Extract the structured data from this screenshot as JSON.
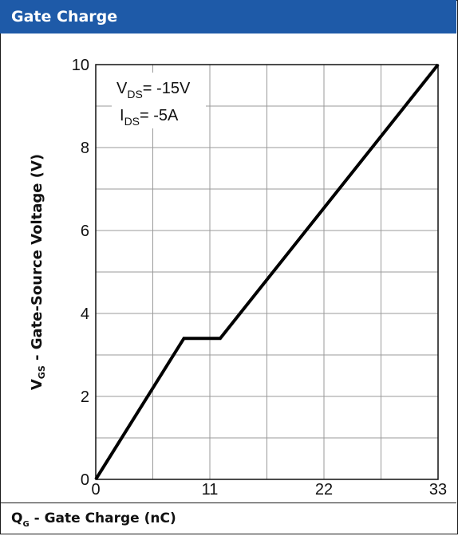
{
  "header": {
    "title": "Gate Charge"
  },
  "chart_data": {
    "type": "line",
    "title": "Gate Charge",
    "xlabel": {
      "main": "Q",
      "sub": "G",
      "rest": " - Gate Charge (nC)"
    },
    "ylabel": {
      "main": "V",
      "sub": "GS",
      "rest": " - Gate-Source Voltage (V)"
    },
    "xlim": [
      0,
      33
    ],
    "ylim": [
      0,
      10
    ],
    "x_ticks": [
      0,
      11,
      22,
      33
    ],
    "y_ticks": [
      0,
      2,
      4,
      6,
      8,
      10
    ],
    "x_tick_labels": [
      "0",
      "11",
      "22",
      "33"
    ],
    "y_tick_labels": [
      "0",
      "2",
      "4",
      "6",
      "8",
      "10"
    ],
    "grid": true,
    "series": [
      {
        "x": [
          0,
          8.5,
          12,
          33
        ],
        "y": [
          0,
          3.4,
          3.4,
          10
        ],
        "color": "#000000"
      }
    ],
    "annotations": [
      {
        "main": "V",
        "sub": "DS",
        "rest": "= -15V"
      },
      {
        "main": "I",
        "sub": "DS",
        "rest": "= -5A"
      }
    ]
  }
}
